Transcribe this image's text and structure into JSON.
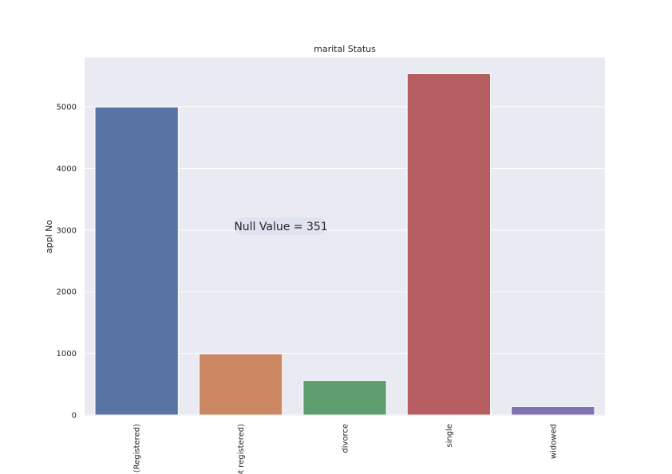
{
  "chart_data": {
    "type": "bar",
    "title": "marital Status",
    "xlabel": "",
    "ylabel": "appl No",
    "categories": [
      "(Registered)",
      "ot registered)",
      "divorce",
      "single",
      "widowed"
    ],
    "values": [
      4995,
      993,
      561,
      5535,
      137
    ],
    "colors": [
      "#5874a5",
      "#cc8863",
      "#5f9e6e",
      "#b55d60",
      "#8172b3"
    ],
    "ylim": [
      0,
      5800
    ],
    "yticks": [
      0,
      1000,
      2000,
      3000,
      4000,
      5000
    ],
    "grid": true,
    "plot_background": "#eaeaf2",
    "annotation": "Null Value = 351"
  }
}
